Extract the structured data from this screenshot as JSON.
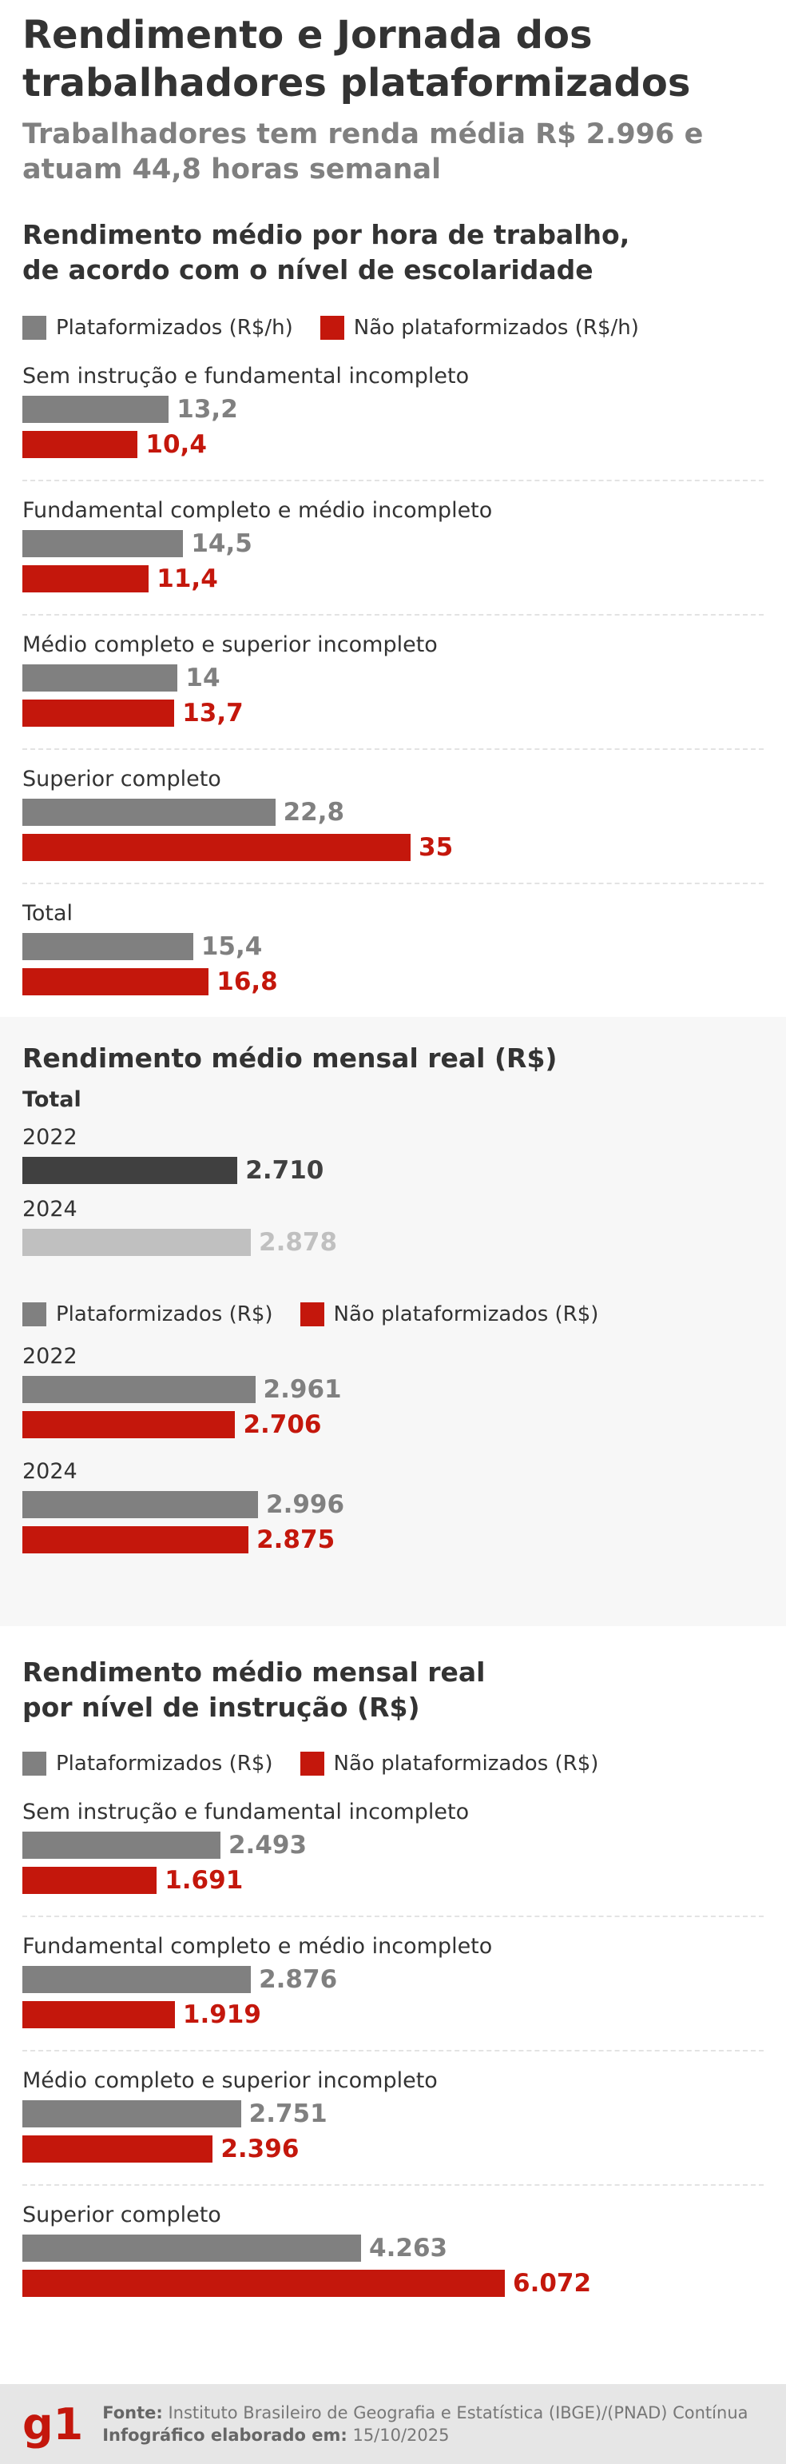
{
  "header": {
    "title": "Rendimento e Jornada dos trabalhadores plataformizados",
    "subtitle": "Trabalhadores tem renda média R$ 2.996 e atuam 44,8 horas semanal"
  },
  "chart_data": [
    {
      "type": "bar",
      "orientation": "horizontal",
      "title": "Rendimento médio por hora de trabalho, de acordo com o nível de escolaridade",
      "categories": [
        "Sem instrução e fundamental incompleto",
        "Fundamental completo e médio incompleto",
        "Médio completo e superior incompleto",
        "Superior completo",
        "Total"
      ],
      "series": [
        {
          "name": "Plataformizados (R$/h)",
          "color": "#808080",
          "values": [
            13.2,
            14.5,
            14,
            22.8,
            15.4
          ],
          "value_labels": [
            "13,2",
            "14,5",
            "14",
            "22,8",
            "15,4"
          ]
        },
        {
          "name": "Não plataformizados (R$/h)",
          "color": "#c4170c",
          "values": [
            10.4,
            11.4,
            13.7,
            35,
            16.8
          ],
          "value_labels": [
            "10,4",
            "11,4",
            "13,7",
            "35",
            "16,8"
          ]
        }
      ],
      "legend": "top-left"
    },
    {
      "type": "bar",
      "orientation": "horizontal",
      "title": "Rendimento médio mensal real (R$)",
      "subtitle": "Total",
      "categories": [
        "2022",
        "2024"
      ],
      "values": [
        2710,
        2878
      ],
      "value_labels": [
        "2.710",
        "2.878"
      ],
      "colors": [
        "#404040",
        "#c0c0c0"
      ]
    },
    {
      "type": "bar",
      "orientation": "horizontal",
      "categories": [
        "2022",
        "2024"
      ],
      "series": [
        {
          "name": "Plataformizados (R$)",
          "color": "#808080",
          "values": [
            2961,
            2996
          ],
          "value_labels": [
            "2.961",
            "2.996"
          ]
        },
        {
          "name": "Não plataformizados (R$)",
          "color": "#c4170c",
          "values": [
            2706,
            2875
          ],
          "value_labels": [
            "2.706",
            "2.875"
          ]
        }
      ],
      "legend": "top-left"
    },
    {
      "type": "bar",
      "orientation": "horizontal",
      "title": "Rendimento médio mensal real por nível de instrução (R$)",
      "categories": [
        "Sem instrução e fundamental incompleto",
        "Fundamental completo e médio incompleto",
        "Médio completo e superior incompleto",
        "Superior completo"
      ],
      "series": [
        {
          "name": "Plataformizados (R$)",
          "color": "#808080",
          "values": [
            2493,
            2876,
            2751,
            4263
          ],
          "value_labels": [
            "2.493",
            "2.876",
            "2.751",
            "4.263"
          ]
        },
        {
          "name": "Não plataformizados (R$)",
          "color": "#c4170c",
          "values": [
            1691,
            1919,
            2396,
            6072
          ],
          "value_labels": [
            "1.691",
            "1.919",
            "2.396",
            "6.072"
          ]
        }
      ],
      "legend": "top-left"
    }
  ],
  "footer": {
    "logo": "g1",
    "source_label": "Fonte:",
    "source": "Instituto Brasileiro de Geografia e Estatística (IBGE)/(PNAD) Contínua",
    "date_label": "Infográfico elaborado em:",
    "date": "15/10/2025"
  }
}
